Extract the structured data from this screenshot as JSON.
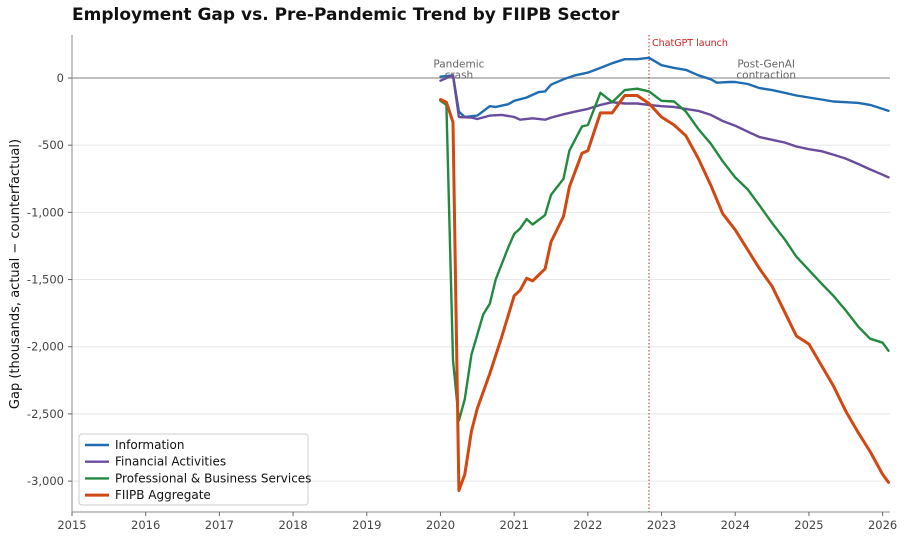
{
  "chart_data": {
    "type": "line",
    "title": "Employment Gap vs. Pre-Pandemic Trend by FIIPB Sector",
    "xlabel": "",
    "ylabel": "Gap (thousands, actual − counterfactual)",
    "xlim": [
      2015,
      2026.1
    ],
    "ylim": [
      -3230,
      320
    ],
    "x_ticks": [
      2015,
      2016,
      2017,
      2018,
      2019,
      2020,
      2021,
      2022,
      2023,
      2024,
      2025,
      2026
    ],
    "x_tick_labels": [
      "2015",
      "2016",
      "2017",
      "2018",
      "2019",
      "2020",
      "2021",
      "2022",
      "2023",
      "2024",
      "2025",
      "2026"
    ],
    "y_ticks": [
      0,
      -500,
      -1000,
      -1500,
      -2000,
      -2500,
      -3000
    ],
    "y_tick_labels": [
      "0",
      "-500",
      "-1,000",
      "-1,500",
      "-2,000",
      "-2,500",
      "-3,000"
    ],
    "grid": "horizontal",
    "legend_position": "lower-left",
    "reference_lines": [
      {
        "axis": "y",
        "value": 0,
        "color": "#999999"
      },
      {
        "axis": "x",
        "value": 2022.83,
        "color": "#cc2222",
        "style": "dotted",
        "label": "ChatGPT launch"
      }
    ],
    "annotations": [
      {
        "text_lines": [
          "Pandemic",
          "crash"
        ],
        "x": 2020.25,
        "y": 20
      },
      {
        "text_lines": [
          "Post-GenAI",
          "contraction"
        ],
        "x": 2024.42,
        "y": 20
      }
    ],
    "series": [
      {
        "name": "Information",
        "color": "#1f6cb0",
        "x": [
          2020.0,
          2020.17,
          2020.25,
          2020.33,
          2020.5,
          2020.67,
          2020.75,
          2020.92,
          2021.0,
          2021.17,
          2021.33,
          2021.42,
          2021.5,
          2021.67,
          2021.83,
          2022.0,
          2022.17,
          2022.33,
          2022.5,
          2022.67,
          2022.83,
          2023.0,
          2023.17,
          2023.33,
          2023.5,
          2023.67,
          2023.75,
          2023.92,
          2024.0,
          2024.17,
          2024.33,
          2024.5,
          2024.67,
          2024.83,
          2025.0,
          2025.17,
          2025.33,
          2025.5,
          2025.67,
          2025.83,
          2026.0,
          2026.08
        ],
        "y": [
          10,
          20,
          -250,
          -290,
          -280,
          -210,
          -215,
          -195,
          -170,
          -145,
          -105,
          -100,
          -50,
          -10,
          20,
          40,
          75,
          110,
          140,
          140,
          150,
          95,
          75,
          60,
          20,
          -10,
          -35,
          -30,
          -30,
          -45,
          -75,
          -90,
          -110,
          -130,
          -145,
          -160,
          -175,
          -180,
          -185,
          -200,
          -230,
          -245
        ]
      },
      {
        "name": "Financial Activities",
        "color": "#6a4c9c",
        "x": [
          2020.0,
          2020.17,
          2020.25,
          2020.42,
          2020.5,
          2020.67,
          2020.83,
          2021.0,
          2021.08,
          2021.25,
          2021.42,
          2021.5,
          2021.67,
          2021.83,
          2022.0,
          2022.17,
          2022.33,
          2022.5,
          2022.67,
          2022.83,
          2023.0,
          2023.17,
          2023.33,
          2023.5,
          2023.67,
          2023.83,
          2024.0,
          2024.17,
          2024.33,
          2024.5,
          2024.67,
          2024.83,
          2025.0,
          2025.17,
          2025.33,
          2025.5,
          2025.67,
          2025.83,
          2026.0,
          2026.08
        ],
        "y": [
          -20,
          20,
          -290,
          -295,
          -305,
          -280,
          -275,
          -290,
          -310,
          -300,
          -310,
          -295,
          -270,
          -250,
          -230,
          -200,
          -180,
          -190,
          -190,
          -200,
          -210,
          -215,
          -230,
          -245,
          -275,
          -320,
          -355,
          -400,
          -440,
          -460,
          -480,
          -510,
          -530,
          -545,
          -570,
          -600,
          -640,
          -680,
          -720,
          -740
        ]
      },
      {
        "name": "Professional & Business Services",
        "color": "#218a3f",
        "x": [
          2020.0,
          2020.08,
          2020.17,
          2020.25,
          2020.33,
          2020.42,
          2020.58,
          2020.67,
          2020.75,
          2020.92,
          2021.0,
          2021.08,
          2021.17,
          2021.25,
          2021.42,
          2021.5,
          2021.67,
          2021.75,
          2021.92,
          2022.0,
          2022.17,
          2022.33,
          2022.5,
          2022.67,
          2022.83,
          2023.0,
          2023.17,
          2023.33,
          2023.5,
          2023.67,
          2023.83,
          2024.0,
          2024.17,
          2024.33,
          2024.5,
          2024.67,
          2024.83,
          2025.0,
          2025.17,
          2025.33,
          2025.5,
          2025.67,
          2025.83,
          2026.0,
          2026.08
        ],
        "y": [
          -170,
          -200,
          -2100,
          -2550,
          -2390,
          -2060,
          -1760,
          -1680,
          -1500,
          -1260,
          -1160,
          -1120,
          -1050,
          -1090,
          -1020,
          -870,
          -750,
          -540,
          -360,
          -350,
          -110,
          -180,
          -90,
          -80,
          -100,
          -170,
          -175,
          -250,
          -380,
          -490,
          -620,
          -740,
          -830,
          -950,
          -1080,
          -1200,
          -1330,
          -1430,
          -1530,
          -1620,
          -1730,
          -1850,
          -1940,
          -1970,
          -2030
        ]
      },
      {
        "name": "FIIPB Aggregate",
        "color": "#d04812",
        "x": [
          2020.0,
          2020.08,
          2020.17,
          2020.25,
          2020.33,
          2020.42,
          2020.5,
          2020.67,
          2020.83,
          2021.0,
          2021.08,
          2021.17,
          2021.25,
          2021.42,
          2021.5,
          2021.67,
          2021.75,
          2021.92,
          2022.0,
          2022.17,
          2022.33,
          2022.5,
          2022.67,
          2022.83,
          2023.0,
          2023.17,
          2023.33,
          2023.5,
          2023.67,
          2023.83,
          2024.0,
          2024.17,
          2024.33,
          2024.5,
          2024.67,
          2024.83,
          2025.0,
          2025.17,
          2025.33,
          2025.5,
          2025.67,
          2025.83,
          2026.0,
          2026.08
        ],
        "y": [
          -160,
          -180,
          -330,
          -3070,
          -2950,
          -2630,
          -2460,
          -2200,
          -1930,
          -1620,
          -1580,
          -1490,
          -1510,
          -1420,
          -1220,
          -1030,
          -810,
          -560,
          -540,
          -260,
          -260,
          -130,
          -130,
          -190,
          -290,
          -350,
          -430,
          -600,
          -800,
          -1010,
          -1130,
          -1280,
          -1420,
          -1550,
          -1740,
          -1920,
          -1980,
          -2140,
          -2290,
          -2480,
          -2640,
          -2780,
          -2950,
          -3010
        ]
      }
    ]
  }
}
